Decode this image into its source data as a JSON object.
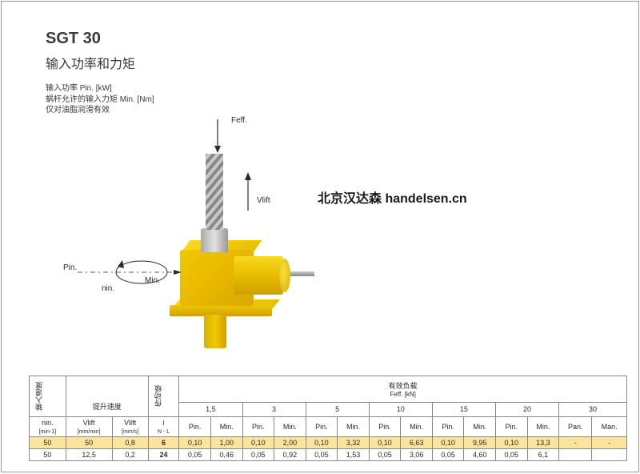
{
  "header": {
    "title": "SGT 30",
    "subtitle": "输入功率和力矩",
    "note1": "输入功率 Pin. [kW]",
    "note2": "蜗杆允许的输入力矩 Min. [Nm]",
    "note3": "仅对油脂润滑有效"
  },
  "watermark": "北京汉达森 handelsen.cn",
  "diagram": {
    "f_eff": "Feff.",
    "v_lift": "Vlift",
    "p_in": "Pin.",
    "n_in": "nin.",
    "m_in": "Min."
  },
  "table": {
    "col_headers": {
      "input_speed": "输入速度",
      "lift_speed": "提升速度",
      "transmission": "传动级",
      "effective_load": "有效负载",
      "f_eff_unit": "Feff. [kN]"
    },
    "sub_headers": {
      "n_in": "nin.",
      "n_in_unit": "[min-1]",
      "v_lift_mm_min": "Vlift",
      "v_lift_mm_min_unit": "[mm/min]",
      "v_lift_mm_s": "Vlift",
      "v_lift_mm_s_unit": "[mm/s]",
      "i": "i",
      "nl": "N - L",
      "p_in": "Pin.",
      "m_in": "Min.",
      "p_an": "Pan.",
      "m_an": "Man."
    },
    "load_cols": [
      "1,5",
      "3",
      "5",
      "10",
      "15",
      "20",
      "30"
    ],
    "rows": [
      {
        "highlight": true,
        "n_in": "50",
        "v_mm_min": "50",
        "v_mm_s": "0,8",
        "i": "6",
        "cells": [
          "0,10",
          "1,00",
          "0,10",
          "2,00",
          "0,10",
          "3,32",
          "0,10",
          "6,63",
          "0,10",
          "9,95",
          "0,10",
          "13,3",
          "-",
          "-"
        ]
      },
      {
        "highlight": false,
        "n_in": "50",
        "v_mm_min": "12,5",
        "v_mm_s": "0,2",
        "i": "24",
        "cells": [
          "0,05",
          "0,46",
          "0,05",
          "0,92",
          "0,05",
          "1,53",
          "0,05",
          "3,06",
          "0,05",
          "4,60",
          "0,05",
          "6,1",
          "",
          ""
        ]
      }
    ]
  },
  "colors": {
    "gold_row": "#fce49a",
    "border": "#888888",
    "text": "#3a3a3a"
  }
}
